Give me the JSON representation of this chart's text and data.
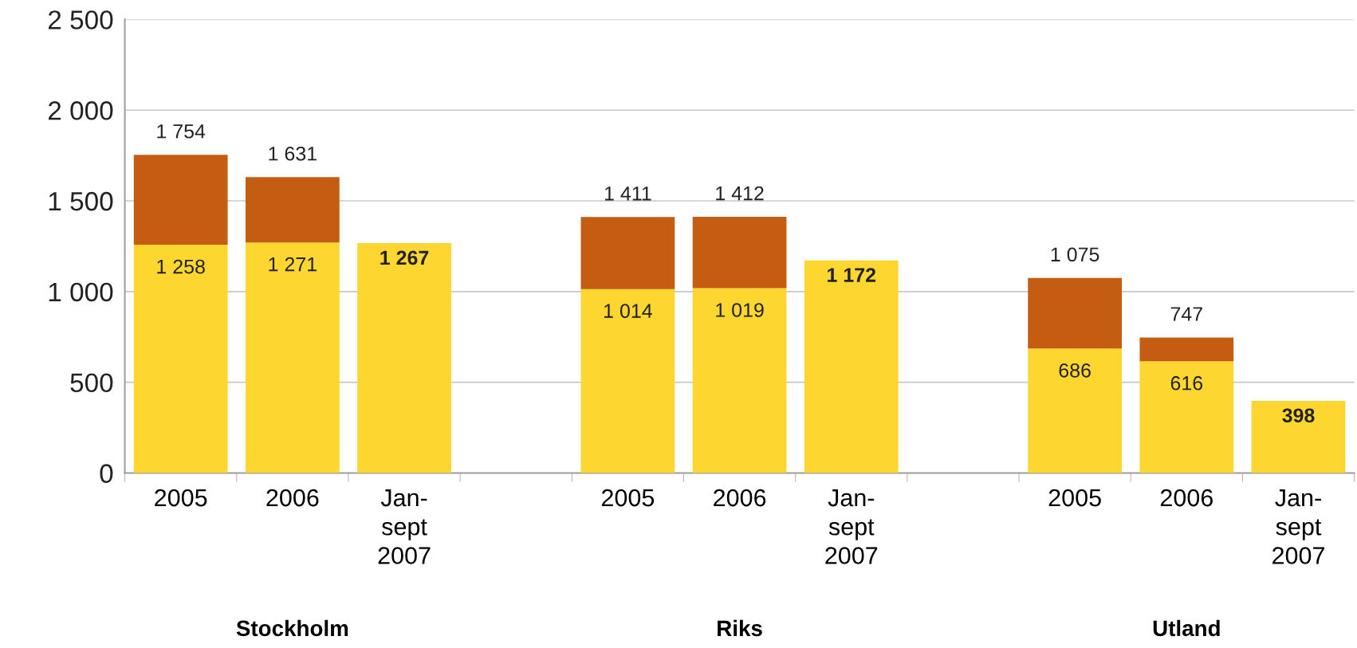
{
  "chart_data": {
    "type": "bar",
    "stacked": true,
    "categories": [
      "2005",
      "2006",
      "Jan-\nsept\n2007",
      null,
      "2005",
      "2006",
      "Jan-\nsept\n2007",
      null,
      "2005",
      "2006",
      "Jan-\nsept\n2007"
    ],
    "series": [
      {
        "color": "#fdd630",
        "values": [
          1258,
          1271,
          1267,
          null,
          1014,
          1019,
          1172,
          null,
          686,
          616,
          398
        ],
        "value_labels": [
          "1 258",
          "1 271",
          "1 267",
          null,
          "1 014",
          "1 019",
          "1 172",
          null,
          "686",
          "616",
          "398"
        ]
      },
      {
        "color": "#c45c12",
        "values": [
          496,
          360,
          null,
          null,
          397,
          393,
          null,
          null,
          389,
          131,
          null
        ]
      }
    ],
    "totals": [
      "1 754",
      "1 631",
      null,
      null,
      "1 411",
      "1 412",
      null,
      null,
      "1 075",
      "747",
      null
    ],
    "annotations": [
      "Stockholm",
      "Riks",
      "Utland"
    ],
    "ylim": [
      0,
      2500
    ],
    "yticks": [
      0,
      500,
      {
        "value": 1000,
        "label": "1 000"
      },
      {
        "value": 1500,
        "label": "1 500"
      },
      {
        "value": 2000,
        "label": "2 000"
      },
      {
        "value": 2500,
        "label": "2 500"
      }
    ],
    "grid": "y",
    "legend": false
  }
}
